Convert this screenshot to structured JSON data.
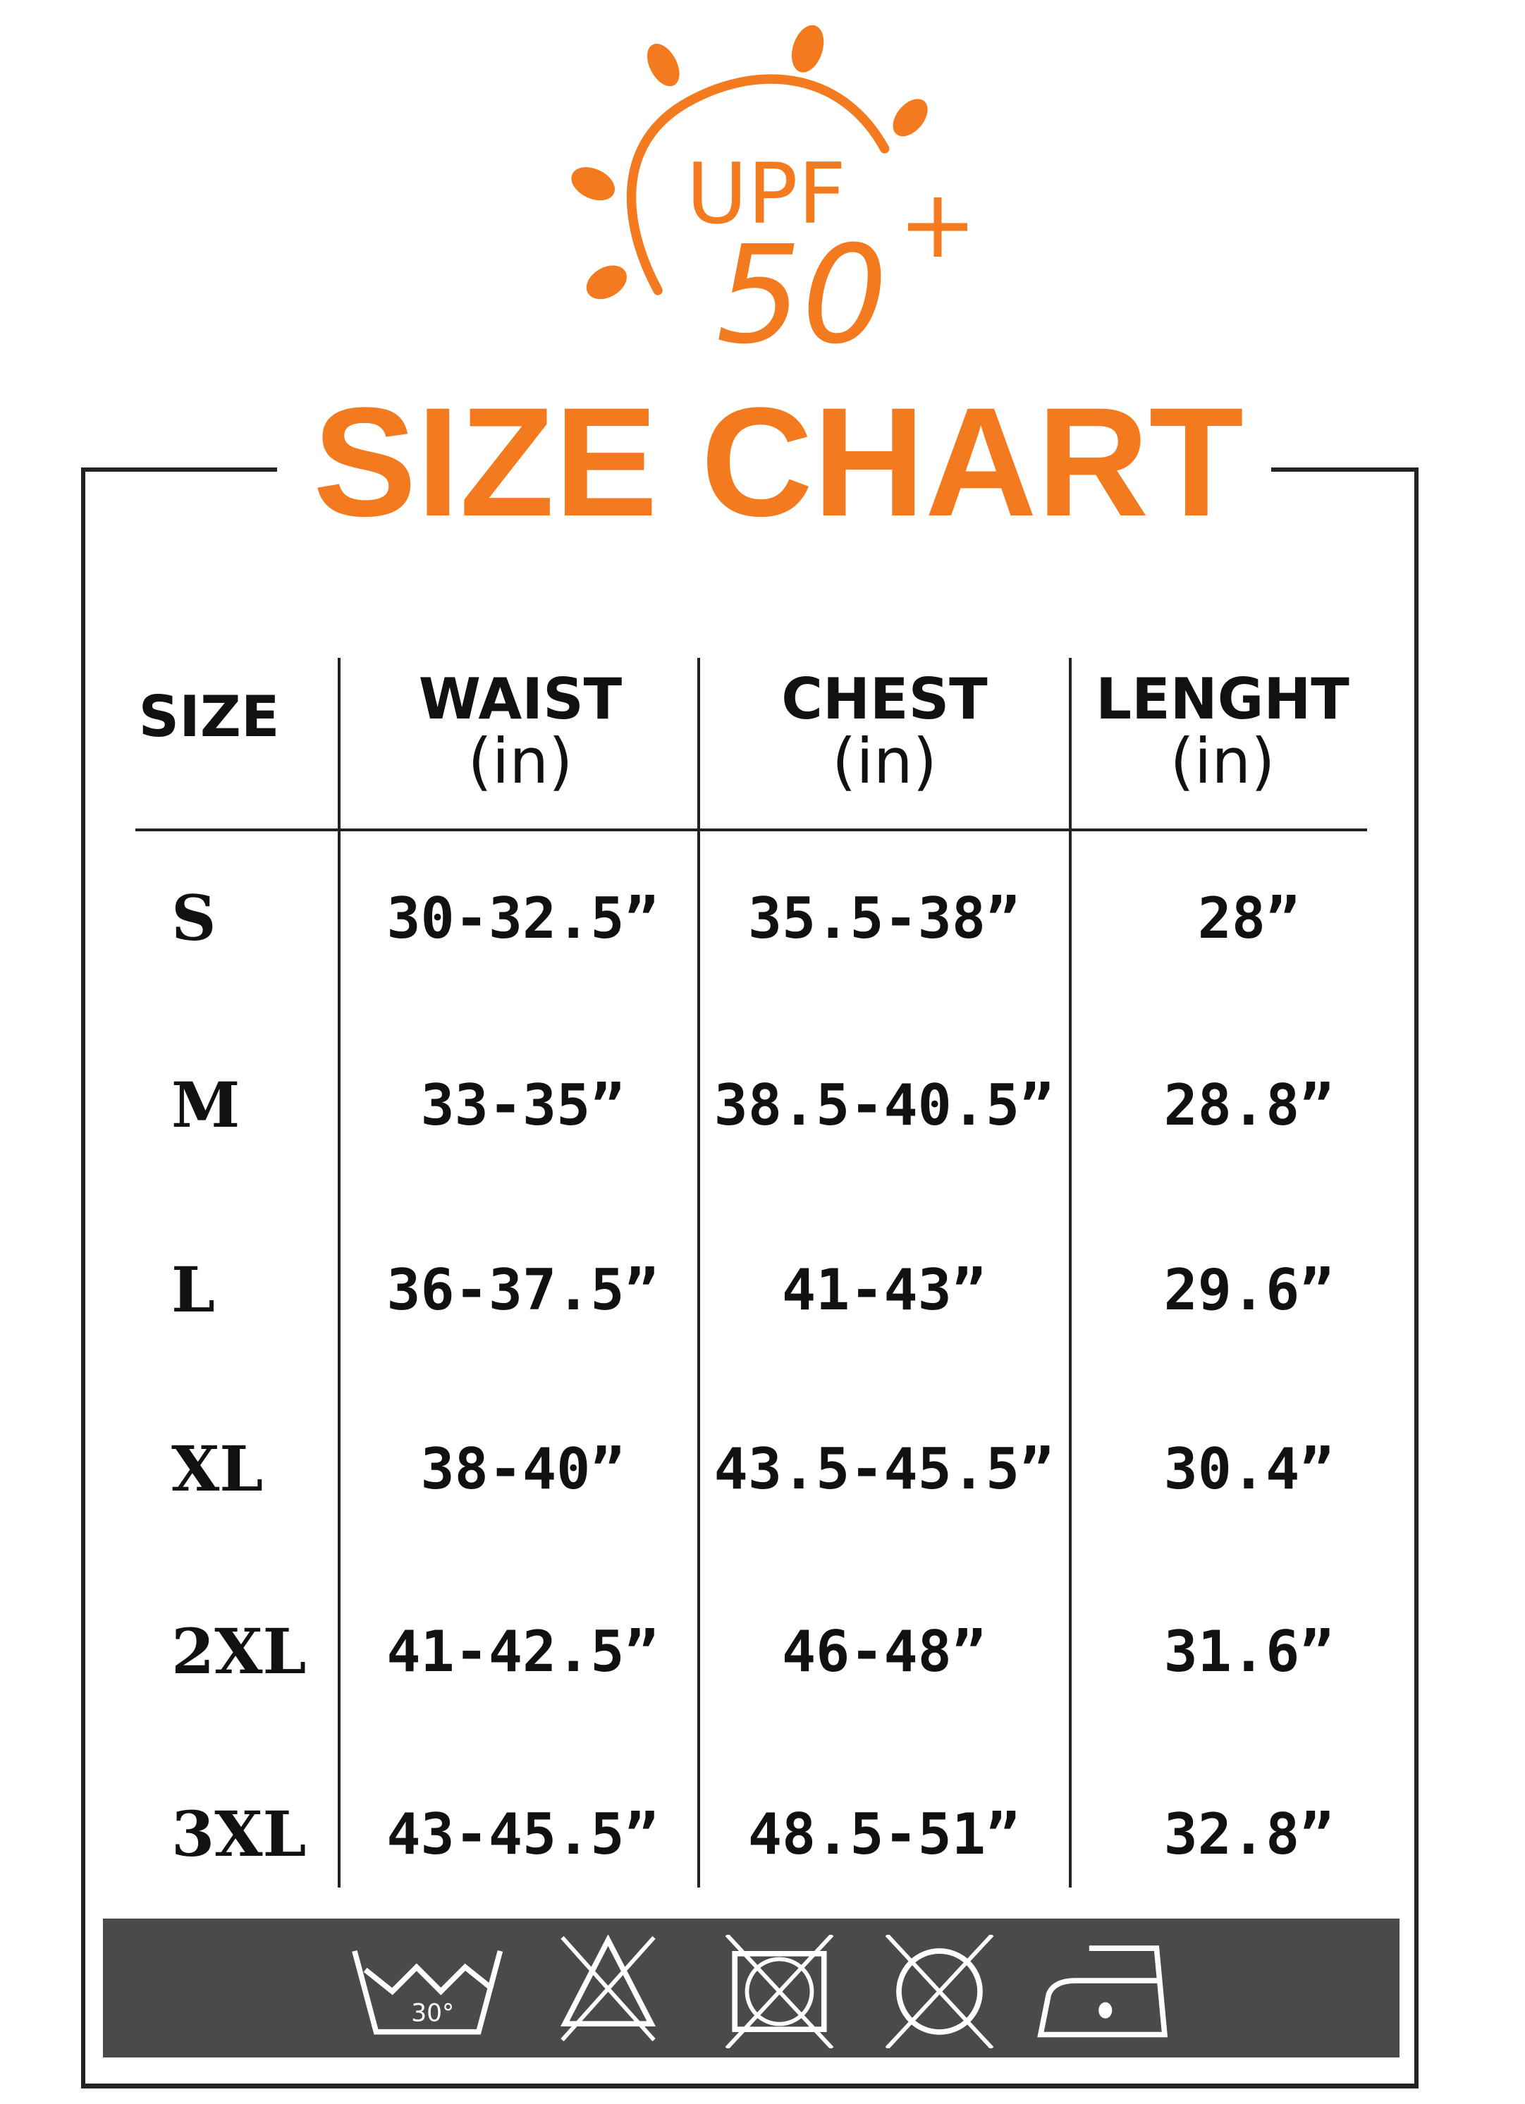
{
  "logo": {
    "text": "UPF 50+",
    "color": "#F47A20"
  },
  "title": "SIZE CHART",
  "colors": {
    "accent": "#F47A20",
    "care_bar": "#4a4a4c",
    "text": "#111111"
  },
  "headers": [
    {
      "title": "SIZE",
      "unit": ""
    },
    {
      "title": "WAIST",
      "unit": "(in)"
    },
    {
      "title": "CHEST",
      "unit": "(in)"
    },
    {
      "title": "LENGHT",
      "unit": "(in)"
    }
  ],
  "rows": [
    {
      "size": "S",
      "waist": "30-32.5”",
      "chest": "35.5-38”",
      "length": "28”"
    },
    {
      "size": "M",
      "waist": "33-35”",
      "chest": "38.5-40.5”",
      "length": "28.8”"
    },
    {
      "size": "L",
      "waist": "36-37.5”",
      "chest": "41-43”",
      "length": "29.6”"
    },
    {
      "size": "XL",
      "waist": "38-40”",
      "chest": "43.5-45.5”",
      "length": "30.4”"
    },
    {
      "size": "2XL",
      "waist": "41-42.5”",
      "chest": "46-48”",
      "length": "31.6”"
    },
    {
      "size": "3XL",
      "waist": "43-45.5”",
      "chest": "48.5-51”",
      "length": "32.8”"
    }
  ],
  "care_icons": [
    "wash-30-icon",
    "do-not-bleach-icon",
    "do-not-tumble-dry-icon",
    "do-not-dry-clean-icon",
    "iron-low-icon"
  ],
  "wash_temp": "30°"
}
